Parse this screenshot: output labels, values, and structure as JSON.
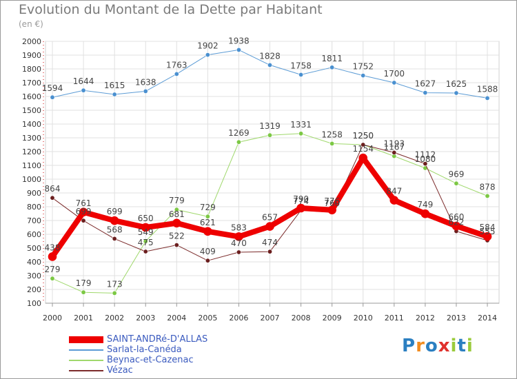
{
  "title": "Evolution du Montant de la Dette par Habitant",
  "unit_label": "(en €)",
  "logo": {
    "letters": [
      "P",
      "r",
      "o",
      "x",
      "i",
      "t",
      "i"
    ],
    "colors": [
      "#2b7fc1",
      "#f28c1f",
      "#2b7fc1",
      "#e0312c",
      "#9acb3c",
      "#2b7fc1",
      "#9acb3c"
    ]
  },
  "chart_data": {
    "type": "line",
    "x": [
      "2000",
      "2001",
      "2002",
      "2003",
      "2004",
      "2005",
      "2006",
      "2007",
      "2008",
      "2009",
      "2010",
      "2011",
      "2012",
      "2013",
      "2014"
    ],
    "ylim": [
      100,
      2000
    ],
    "yticks": [
      100,
      200,
      300,
      400,
      500,
      600,
      700,
      800,
      900,
      1000,
      1100,
      1200,
      1300,
      1400,
      1500,
      1600,
      1700,
      1800,
      1900,
      2000
    ],
    "grid": true,
    "legend_position": "bottom-left",
    "series": [
      {
        "name": "Sarlat-la-Canéda",
        "color": "#5b9bd5",
        "marker": "#4a90d0",
        "width": 1,
        "values": [
          1594,
          1644,
          1615,
          1638,
          1763,
          1902,
          1938,
          1828,
          1758,
          1811,
          1752,
          1700,
          1627,
          1625,
          1588
        ],
        "labels": [
          "1594",
          "1644",
          "1615",
          "1638",
          "1763",
          "1902",
          "1938",
          "1828",
          "1758",
          "1811",
          "1752",
          "1700",
          "1627",
          "1625",
          "1588"
        ]
      },
      {
        "name": "Beynac-et-Cazenac",
        "color": "#9fd86b",
        "marker": "#7cc844",
        "width": 1,
        "values": [
          279,
          179,
          173,
          549,
          779,
          729,
          1269,
          1319,
          1331,
          1258,
          1250,
          1167,
          1080,
          969,
          878
        ],
        "labels": [
          "279",
          "179",
          "173",
          "549",
          "779",
          "729",
          "1269",
          "1319",
          "1331",
          "1258",
          "1250",
          "1167",
          "1080",
          "969",
          "878"
        ]
      },
      {
        "name": "Vézac",
        "color": "#7b2a2a",
        "marker": "#6b1f1f",
        "width": 1,
        "values": [
          864,
          699,
          568,
          475,
          522,
          409,
          470,
          474,
          774,
          760,
          1250,
          1193,
          1112,
          622,
          555
        ],
        "labels": [
          "864",
          "699",
          "568",
          "475",
          "522",
          "409",
          "470",
          "474",
          "774",
          "760",
          "1250",
          "1193",
          "1112",
          "622",
          "555"
        ]
      },
      {
        "name": "SAINT-ANDRé-D'ALLAS",
        "color": "#ee0000",
        "marker": "#ee0000",
        "width": 8,
        "values": [
          438,
          761,
          699,
          650,
          681,
          621,
          583,
          657,
          790,
          776,
          1154,
          847,
          749,
          660,
          584
        ],
        "labels": [
          "438",
          "761",
          "699",
          "650",
          "681",
          "621",
          "583",
          "657",
          "790",
          "776",
          "1154",
          "847",
          "749",
          "660",
          "584"
        ]
      }
    ],
    "legend": [
      {
        "name": "SAINT-ANDRé-D'ALLAS",
        "color": "#ee0000",
        "thickness": 10
      },
      {
        "name": "Sarlat-la-Canéda",
        "color": "#5b9bd5",
        "thickness": 2
      },
      {
        "name": "Beynac-et-Cazenac",
        "color": "#9fd86b",
        "thickness": 2
      },
      {
        "name": "Vézac",
        "color": "#7b2a2a",
        "thickness": 2
      }
    ]
  }
}
